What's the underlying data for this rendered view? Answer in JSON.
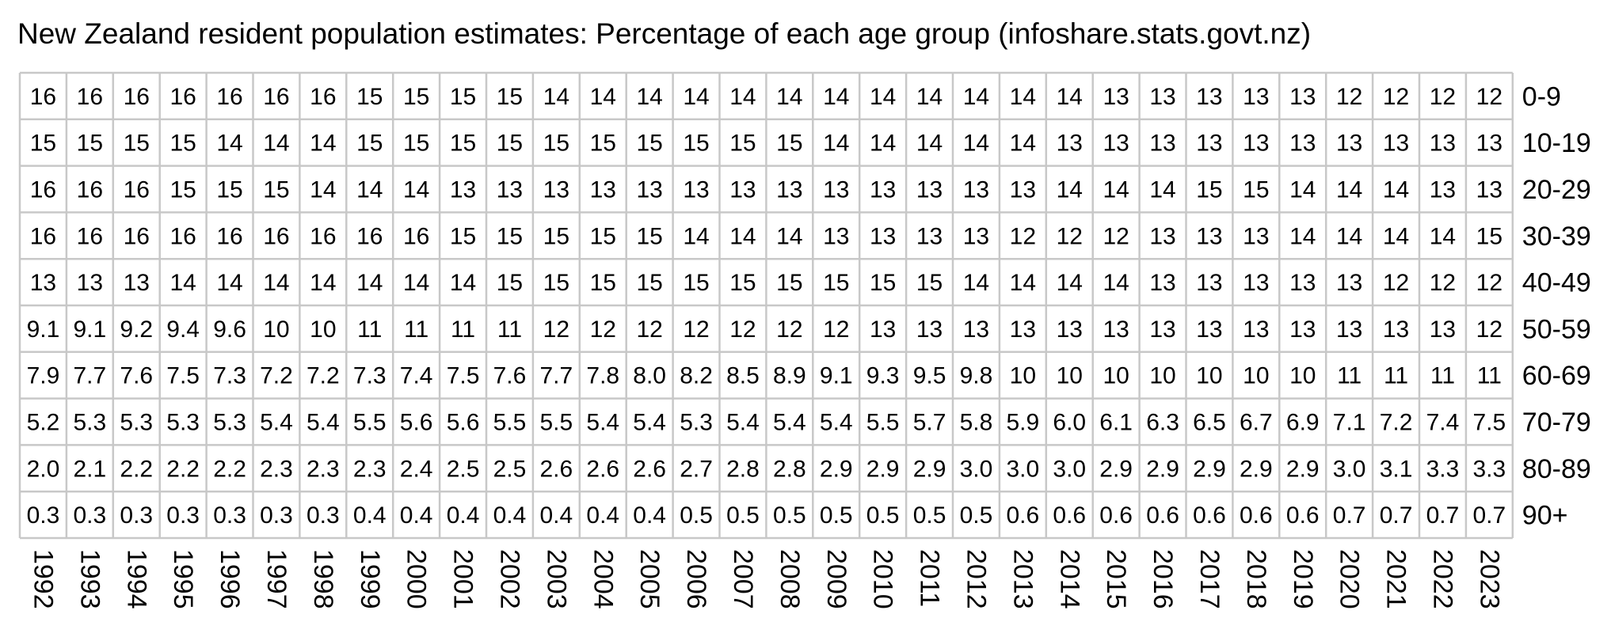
{
  "chart_data": {
    "type": "table",
    "title": "New Zealand resident population estimates: Percentage of each age group (infoshare.stats.govt.nz)",
    "grid": true,
    "columns": [
      "1992",
      "1993",
      "1994",
      "1995",
      "1996",
      "1997",
      "1998",
      "1999",
      "2000",
      "2001",
      "2002",
      "2003",
      "2004",
      "2005",
      "2006",
      "2007",
      "2008",
      "2009",
      "2010",
      "2011",
      "2012",
      "2013",
      "2014",
      "2015",
      "2016",
      "2017",
      "2018",
      "2019",
      "2020",
      "2021",
      "2022",
      "2023"
    ],
    "row_labels": [
      "0-9",
      "10-19",
      "20-29",
      "30-39",
      "40-49",
      "50-59",
      "60-69",
      "70-79",
      "80-89",
      "90+"
    ],
    "rows": [
      [
        "16",
        "16",
        "16",
        "16",
        "16",
        "16",
        "16",
        "15",
        "15",
        "15",
        "15",
        "14",
        "14",
        "14",
        "14",
        "14",
        "14",
        "14",
        "14",
        "14",
        "14",
        "14",
        "14",
        "13",
        "13",
        "13",
        "13",
        "13",
        "12",
        "12",
        "12",
        "12"
      ],
      [
        "15",
        "15",
        "15",
        "15",
        "14",
        "14",
        "14",
        "15",
        "15",
        "15",
        "15",
        "15",
        "15",
        "15",
        "15",
        "15",
        "15",
        "14",
        "14",
        "14",
        "14",
        "14",
        "13",
        "13",
        "13",
        "13",
        "13",
        "13",
        "13",
        "13",
        "13",
        "13"
      ],
      [
        "16",
        "16",
        "16",
        "15",
        "15",
        "15",
        "14",
        "14",
        "14",
        "13",
        "13",
        "13",
        "13",
        "13",
        "13",
        "13",
        "13",
        "13",
        "13",
        "13",
        "13",
        "13",
        "14",
        "14",
        "14",
        "15",
        "15",
        "14",
        "14",
        "14",
        "13",
        "13"
      ],
      [
        "16",
        "16",
        "16",
        "16",
        "16",
        "16",
        "16",
        "16",
        "16",
        "15",
        "15",
        "15",
        "15",
        "15",
        "14",
        "14",
        "14",
        "13",
        "13",
        "13",
        "13",
        "12",
        "12",
        "12",
        "13",
        "13",
        "13",
        "14",
        "14",
        "14",
        "14",
        "15"
      ],
      [
        "13",
        "13",
        "13",
        "14",
        "14",
        "14",
        "14",
        "14",
        "14",
        "14",
        "15",
        "15",
        "15",
        "15",
        "15",
        "15",
        "15",
        "15",
        "15",
        "15",
        "14",
        "14",
        "14",
        "14",
        "13",
        "13",
        "13",
        "13",
        "13",
        "12",
        "12",
        "12"
      ],
      [
        "9.1",
        "9.1",
        "9.2",
        "9.4",
        "9.6",
        "10",
        "10",
        "11",
        "11",
        "11",
        "11",
        "12",
        "12",
        "12",
        "12",
        "12",
        "12",
        "12",
        "13",
        "13",
        "13",
        "13",
        "13",
        "13",
        "13",
        "13",
        "13",
        "13",
        "13",
        "13",
        "13",
        "12"
      ],
      [
        "7.9",
        "7.7",
        "7.6",
        "7.5",
        "7.3",
        "7.2",
        "7.2",
        "7.3",
        "7.4",
        "7.5",
        "7.6",
        "7.7",
        "7.8",
        "8.0",
        "8.2",
        "8.5",
        "8.9",
        "9.1",
        "9.3",
        "9.5",
        "9.8",
        "10",
        "10",
        "10",
        "10",
        "10",
        "10",
        "10",
        "11",
        "11",
        "11",
        "11"
      ],
      [
        "5.2",
        "5.3",
        "5.3",
        "5.3",
        "5.3",
        "5.4",
        "5.4",
        "5.5",
        "5.6",
        "5.6",
        "5.5",
        "5.5",
        "5.4",
        "5.4",
        "5.3",
        "5.4",
        "5.4",
        "5.4",
        "5.5",
        "5.7",
        "5.8",
        "5.9",
        "6.0",
        "6.1",
        "6.3",
        "6.5",
        "6.7",
        "6.9",
        "7.1",
        "7.2",
        "7.4",
        "7.5"
      ],
      [
        "2.0",
        "2.1",
        "2.2",
        "2.2",
        "2.2",
        "2.3",
        "2.3",
        "2.3",
        "2.4",
        "2.5",
        "2.5",
        "2.6",
        "2.6",
        "2.6",
        "2.7",
        "2.8",
        "2.8",
        "2.9",
        "2.9",
        "2.9",
        "3.0",
        "3.0",
        "3.0",
        "2.9",
        "2.9",
        "2.9",
        "2.9",
        "2.9",
        "3.0",
        "3.1",
        "3.3",
        "3.3"
      ],
      [
        "0.3",
        "0.3",
        "0.3",
        "0.3",
        "0.3",
        "0.3",
        "0.3",
        "0.4",
        "0.4",
        "0.4",
        "0.4",
        "0.4",
        "0.4",
        "0.4",
        "0.5",
        "0.5",
        "0.5",
        "0.5",
        "0.5",
        "0.5",
        "0.5",
        "0.6",
        "0.6",
        "0.6",
        "0.6",
        "0.6",
        "0.6",
        "0.6",
        "0.7",
        "0.7",
        "0.7",
        "0.7"
      ]
    ],
    "colors": {
      "grid": "#c8c8c8",
      "text": "#000000",
      "background": "#ffffff"
    }
  }
}
